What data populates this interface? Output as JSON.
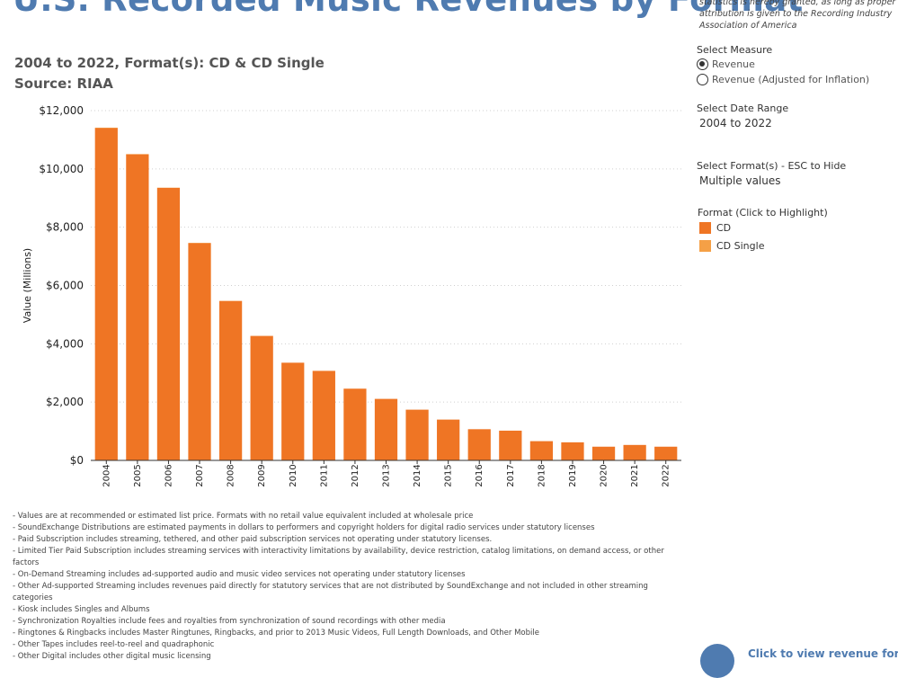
{
  "title": "U.S. Recorded Music Revenues by Format",
  "attribution": [
    "statistics is hereby granted, as long as proper",
    "attribution is given to the Recording Industry",
    "Association of America"
  ],
  "subtitle_line1": "2004 to 2022, Format(s): CD & CD Single",
  "subtitle_line2": "Source: RIAA",
  "controls": {
    "measure_label": "Select Measure",
    "measure_options": [
      {
        "label": "Revenue",
        "selected": true
      },
      {
        "label": "Revenue (Adjusted for Inflation)",
        "selected": false
      }
    ],
    "date_label": "Select Date Range",
    "date_value": "2004 to 2022",
    "format_label": "Select Format(s) - ESC to Hide",
    "format_value": "Multiple values"
  },
  "legend": {
    "title": "Format (Click to Highlight)",
    "items": [
      {
        "label": "CD",
        "color": "#ef7524"
      },
      {
        "label": "CD Single",
        "color": "#f5a046"
      }
    ]
  },
  "chart_data": {
    "type": "bar",
    "categories": [
      "2004",
      "2005",
      "2006",
      "2007",
      "2008",
      "2009",
      "2010",
      "2011",
      "2012",
      "2013",
      "2014",
      "2015",
      "2016",
      "2017",
      "2018",
      "2019",
      "2020",
      "2021",
      "2022"
    ],
    "series": [
      {
        "name": "CD",
        "color": "#ef7524",
        "values": [
          11400,
          10500,
          9350,
          7450,
          5470,
          4270,
          3350,
          3070,
          2460,
          2110,
          1740,
          1400,
          1070,
          1020,
          660,
          620,
          470,
          530,
          470
        ]
      },
      {
        "name": "CD Single",
        "color": "#f5a046",
        "values": [
          15,
          10,
          7,
          12,
          4,
          3,
          2,
          2,
          1,
          1,
          1,
          1,
          0,
          0,
          0,
          0,
          0,
          0,
          0
        ]
      }
    ],
    "ylabel": "Value (Millions)",
    "xlabel": "",
    "ylim": [
      0,
      12000
    ],
    "yticks": [
      0,
      2000,
      4000,
      6000,
      8000,
      10000,
      12000
    ],
    "ytick_labels": [
      "$0",
      "$2,000",
      "$4,000",
      "$6,000",
      "$8,000",
      "$10,000",
      "$12,000"
    ],
    "grid": "horizontal-dotted",
    "stacked": true
  },
  "notes": [
    "- Values are at recommended or estimated list price. Formats with no retail value equivalent included at wholesale price",
    "- SoundExchange Distributions are estimated payments in dollars to performers and copyright holders for digital radio services under statutory licenses",
    "- Paid Subscription includes streaming, tethered, and other paid subscription services not operating under statutory licenses.",
    "- Limited Tier Paid Subscription includes streaming services with interactivity limitations by availability, device restriction, catalog limitations, on demand access, or other factors",
    "- On-Demand Streaming includes ad-supported audio and music video services not operating under statutory licenses",
    "- Other Ad-supported Streaming includes revenues paid directly for statutory services that are not distributed by SoundExchange and not included in other streaming categories",
    "- Kiosk includes Singles and Albums",
    "- Synchronization Royalties include fees and royalties from synchronization of sound recordings with other media",
    "- Ringtones & Ringbacks includes Master Ringtunes, Ringbacks, and prior to 2013 Music Videos, Full Length Downloads, and Other Mobile",
    "- Other Tapes includes reel-to-reel and quadraphonic",
    "- Other Digital includes other digital music licensing"
  ],
  "link_text": "Click to view revenue for"
}
